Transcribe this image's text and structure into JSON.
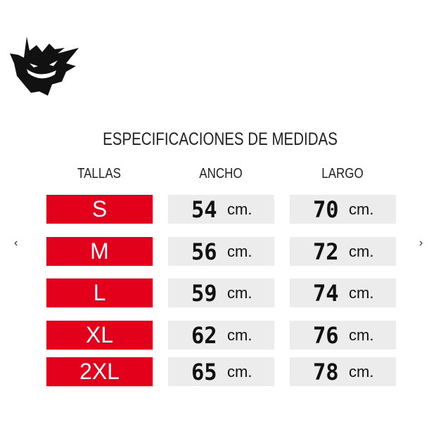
{
  "title": "ESPECIFICACIONES DE MEDIDAS",
  "headers": [
    "TALLAS",
    "ANCHO",
    "LARGO"
  ],
  "rows": [
    {
      "size": "S",
      "ancho": "54",
      "largo": "70"
    },
    {
      "size": "M",
      "ancho": "56",
      "largo": "72"
    },
    {
      "size": "L",
      "ancho": "59",
      "largo": "74"
    },
    {
      "size": "XL",
      "ancho": "62",
      "largo": "76"
    },
    {
      "size": "2XL",
      "ancho": "65",
      "largo": "78"
    }
  ],
  "unit": "cm.",
  "nav": {
    "prev": "‹",
    "next": "›"
  },
  "colors": {
    "size_bg": "#e2001a",
    "measure_bg": "#ececec"
  },
  "logo": "ghost-pokemon-silhouette"
}
